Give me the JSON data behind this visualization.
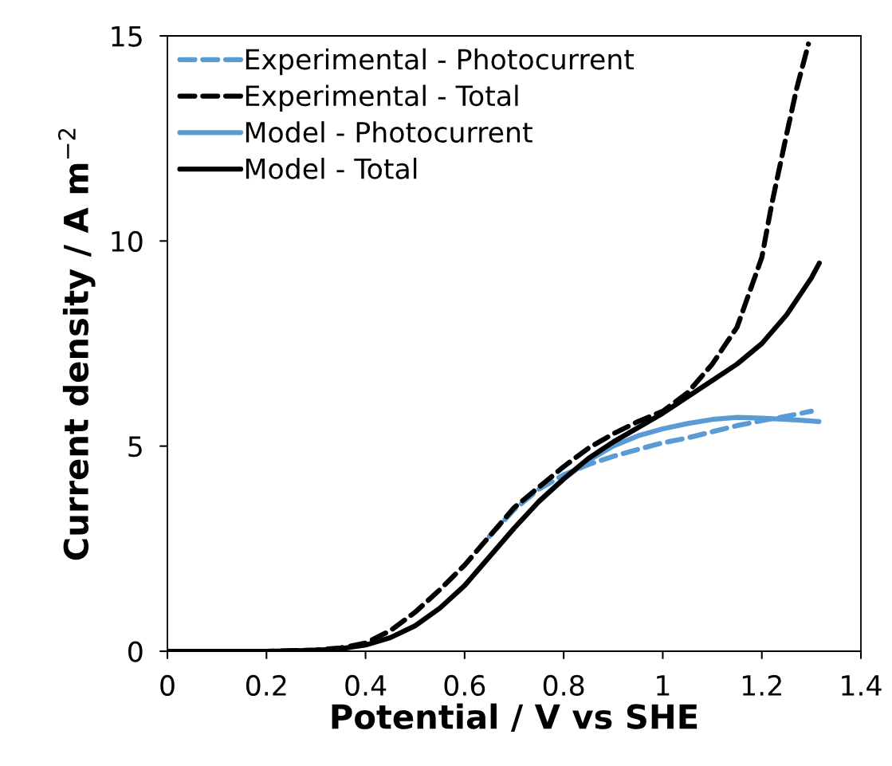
{
  "chart_data": {
    "type": "line",
    "xlabel": "Potential / V vs SHE",
    "ylabel": "Current density / A m$^{−2}$",
    "xlim": [
      0,
      1.4
    ],
    "xticks": [
      0,
      0.2,
      0.4,
      0.6,
      0.8,
      1,
      1.2,
      1.4
    ],
    "ylim": [
      0,
      15
    ],
    "yticks": [
      0,
      5,
      10,
      15
    ],
    "grid": false,
    "legend": "top left",
    "marker": "none",
    "series": [
      {
        "name": "Experimental - Photocurrent",
        "color": "#5b9bd5",
        "line_style": "dashed",
        "x": [
          0.65,
          0.7,
          0.75,
          0.8,
          0.85,
          0.9,
          0.95,
          1.0,
          1.05,
          1.1,
          1.15,
          1.2,
          1.25,
          1.3
        ],
        "values": [
          2.8,
          3.45,
          3.95,
          4.3,
          4.55,
          4.75,
          4.92,
          5.08,
          5.2,
          5.35,
          5.5,
          5.62,
          5.73,
          5.85
        ]
      },
      {
        "name": "Experimental - Total",
        "color": "#000000",
        "line_style": "dashed",
        "x": [
          0,
          0.2,
          0.3,
          0.35,
          0.4,
          0.45,
          0.5,
          0.55,
          0.6,
          0.65,
          0.7,
          0.75,
          0.8,
          0.85,
          0.9,
          0.95,
          1.0,
          1.05,
          1.1,
          1.15,
          1.2,
          1.22,
          1.25,
          1.27,
          1.294
        ],
        "values": [
          0,
          0,
          0.03,
          0.08,
          0.2,
          0.5,
          0.95,
          1.5,
          2.1,
          2.8,
          3.5,
          4.0,
          4.5,
          4.95,
          5.3,
          5.6,
          5.85,
          6.3,
          7.0,
          7.9,
          9.6,
          10.9,
          12.6,
          13.7,
          14.8
        ]
      },
      {
        "name": "Model - Photocurrent",
        "color": "#5b9bd5",
        "line_style": "solid",
        "x": [
          0.75,
          0.8,
          0.85,
          0.9,
          0.95,
          1.0,
          1.05,
          1.1,
          1.15,
          1.2,
          1.25,
          1.315
        ],
        "values": [
          3.65,
          4.2,
          4.65,
          5.0,
          5.25,
          5.42,
          5.55,
          5.65,
          5.7,
          5.68,
          5.65,
          5.6
        ]
      },
      {
        "name": "Model - Total",
        "color": "#000000",
        "line_style": "solid",
        "x": [
          0,
          0.2,
          0.3,
          0.35,
          0.4,
          0.45,
          0.5,
          0.55,
          0.6,
          0.65,
          0.7,
          0.75,
          0.8,
          0.85,
          0.9,
          0.95,
          1.0,
          1.05,
          1.1,
          1.15,
          1.2,
          1.25,
          1.3,
          1.316
        ],
        "values": [
          0,
          0,
          0.02,
          0.06,
          0.15,
          0.33,
          0.62,
          1.05,
          1.6,
          2.3,
          3.0,
          3.65,
          4.2,
          4.7,
          5.1,
          5.45,
          5.8,
          6.2,
          6.6,
          7.0,
          7.5,
          8.2,
          9.1,
          9.46
        ]
      }
    ]
  }
}
